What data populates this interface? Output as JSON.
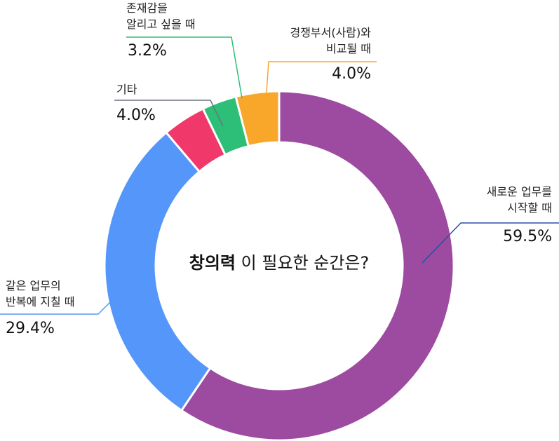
{
  "chart_data": {
    "type": "pie",
    "donut": true,
    "center_title_bold": "창의력",
    "center_title_rest": "이 필요한 순간은?",
    "categories": [
      "새로운 업무를\n시작할 때",
      "같은 업무의\n반복에 지칠 때",
      "기타",
      "존재감을\n알리고 싶을 때",
      "경쟁부서(사람)와\n비교될 때"
    ],
    "series": [
      {
        "values": [
          59.5,
          29.4,
          4.0,
          3.2,
          4.0
        ],
        "value_labels": [
          "59.5%",
          "29.4%",
          "4.0%",
          "3.2%",
          "4.0%"
        ],
        "colors": [
          "#9c4ba0",
          "#5596fa",
          "#f0386b",
          "#2dbf78",
          "#f9a72b"
        ]
      }
    ]
  }
}
